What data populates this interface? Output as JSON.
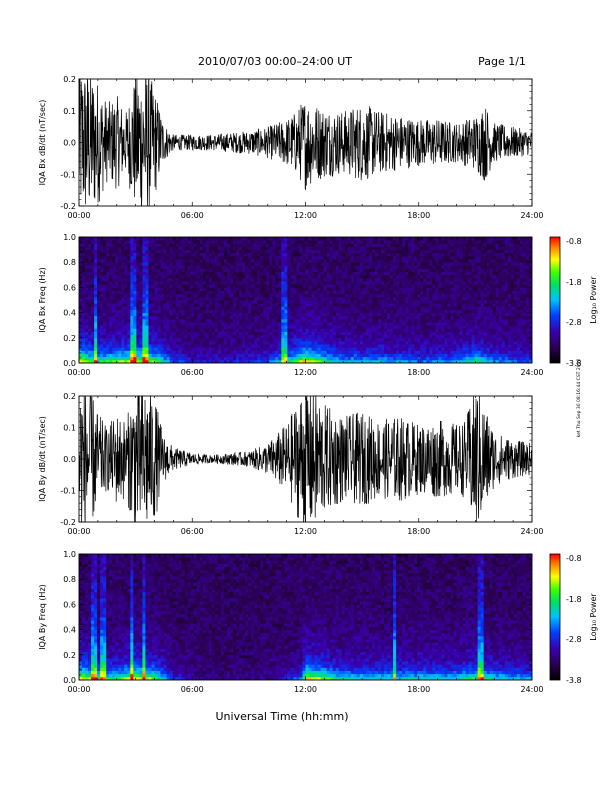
{
  "header": {
    "title": "2010/07/03  00:00–24:00 UT",
    "page": "Page 1/1"
  },
  "footer": {
    "xlabel": "Universal Time (hh:mm)"
  },
  "side_note": "ket Thu Sep 30 08:16:44 CST 2010",
  "colorbar": {
    "label": "Log₁₀ Power",
    "ticks": [
      "-0.8",
      "-1.8",
      "-2.8",
      "-3.8"
    ]
  },
  "chart_data": [
    {
      "type": "line",
      "ylabel": "IQA Bx dB/dt (nT/sec)",
      "xlim": [
        0,
        24
      ],
      "ylim": [
        -0.2,
        0.2
      ],
      "xticks": [
        "00:00",
        "06:00",
        "12:00",
        "18:00",
        "24:00"
      ],
      "yticks": [
        "-0.2",
        "-0.1",
        "0.0",
        "0.1",
        "0.2"
      ],
      "series": [
        {
          "x": [
            0,
            0.5,
            1,
            1.5,
            2,
            2.5,
            3,
            3.5,
            4,
            4.5,
            5,
            6,
            7,
            8,
            9,
            10,
            11,
            11.5,
            12,
            12.5,
            13,
            14,
            15,
            16,
            17,
            18,
            19,
            20,
            20.5,
            21,
            21.5,
            22,
            23,
            24
          ],
          "amp": [
            0.2,
            0.2,
            0.16,
            0.1,
            0.12,
            0.08,
            0.18,
            0.2,
            0.14,
            0.05,
            0.02,
            0.02,
            0.02,
            0.025,
            0.03,
            0.04,
            0.06,
            0.08,
            0.12,
            0.1,
            0.09,
            0.08,
            0.1,
            0.08,
            0.07,
            0.06,
            0.06,
            0.05,
            0.06,
            0.07,
            0.1,
            0.05,
            0.04,
            0.03
          ]
        }
      ]
    },
    {
      "type": "heatmap",
      "ylabel": "IQA Bx Freq (Hz)",
      "xlim": [
        0,
        24
      ],
      "ylim": [
        0,
        1
      ],
      "xticks": [
        "00:00",
        "06:00",
        "12:00",
        "18:00",
        "24:00"
      ],
      "yticks": [
        "0.0",
        "0.2",
        "0.4",
        "0.6",
        "0.8",
        "1.0"
      ],
      "clim": [
        -3.8,
        -0.8
      ],
      "low_freq_activity_x": [
        0,
        1,
        2,
        3,
        4,
        5,
        6,
        8,
        10,
        11,
        12,
        13,
        14,
        16,
        18,
        20,
        21,
        22,
        24
      ],
      "low_freq_activity": [
        0.9,
        0.6,
        0.7,
        0.8,
        0.7,
        0.3,
        0.2,
        0.2,
        0.3,
        0.5,
        0.9,
        0.6,
        0.45,
        0.45,
        0.35,
        0.4,
        0.6,
        0.4,
        0.3
      ],
      "bursts_x": [
        0.9,
        2.9,
        3.5,
        10.9
      ]
    },
    {
      "type": "line",
      "ylabel": "IQA By dB/dt (nT/sec)",
      "xlim": [
        0,
        24
      ],
      "ylim": [
        -0.2,
        0.2
      ],
      "xticks": [
        "00:00",
        "06:00",
        "12:00",
        "18:00",
        "24:00"
      ],
      "yticks": [
        "-0.2",
        "-0.1",
        "0.0",
        "0.1",
        "0.2"
      ],
      "series": [
        {
          "x": [
            0,
            0.5,
            1,
            1.5,
            2,
            2.5,
            3,
            3.5,
            4,
            4.5,
            5,
            6,
            7,
            8,
            9,
            10,
            11,
            11.5,
            12,
            12.5,
            13,
            14,
            15,
            16,
            17,
            18,
            19,
            20,
            20.5,
            21,
            21.5,
            22,
            23,
            24
          ],
          "amp": [
            0.2,
            0.2,
            0.12,
            0.08,
            0.12,
            0.1,
            0.2,
            0.2,
            0.16,
            0.06,
            0.03,
            0.015,
            0.01,
            0.015,
            0.02,
            0.04,
            0.09,
            0.14,
            0.2,
            0.18,
            0.14,
            0.11,
            0.12,
            0.1,
            0.11,
            0.09,
            0.1,
            0.09,
            0.1,
            0.2,
            0.14,
            0.07,
            0.05,
            0.04
          ]
        }
      ]
    },
    {
      "type": "heatmap",
      "ylabel": "IQA By Freq (Hz)",
      "xlim": [
        0,
        24
      ],
      "ylim": [
        0,
        1
      ],
      "xticks": [
        "00:00",
        "06:00",
        "12:00",
        "18:00",
        "24:00"
      ],
      "yticks": [
        "0.0",
        "0.2",
        "0.4",
        "0.6",
        "0.8",
        "1.0"
      ],
      "clim": [
        -3.8,
        -0.8
      ],
      "low_freq_activity_x": [
        0,
        1,
        2,
        3,
        4,
        5,
        6,
        8,
        10,
        11,
        11.8,
        12,
        13,
        14,
        16,
        18,
        20,
        21,
        22,
        24
      ],
      "low_freq_activity": [
        0.9,
        0.6,
        0.6,
        0.85,
        0.7,
        0.25,
        0.1,
        0.05,
        0.1,
        0.2,
        0.35,
        0.9,
        0.7,
        0.5,
        0.5,
        0.5,
        0.5,
        0.65,
        0.5,
        0.4
      ],
      "bursts_x": [
        0.8,
        1.3,
        2.8,
        3.4,
        16.7,
        21.3
      ]
    }
  ]
}
